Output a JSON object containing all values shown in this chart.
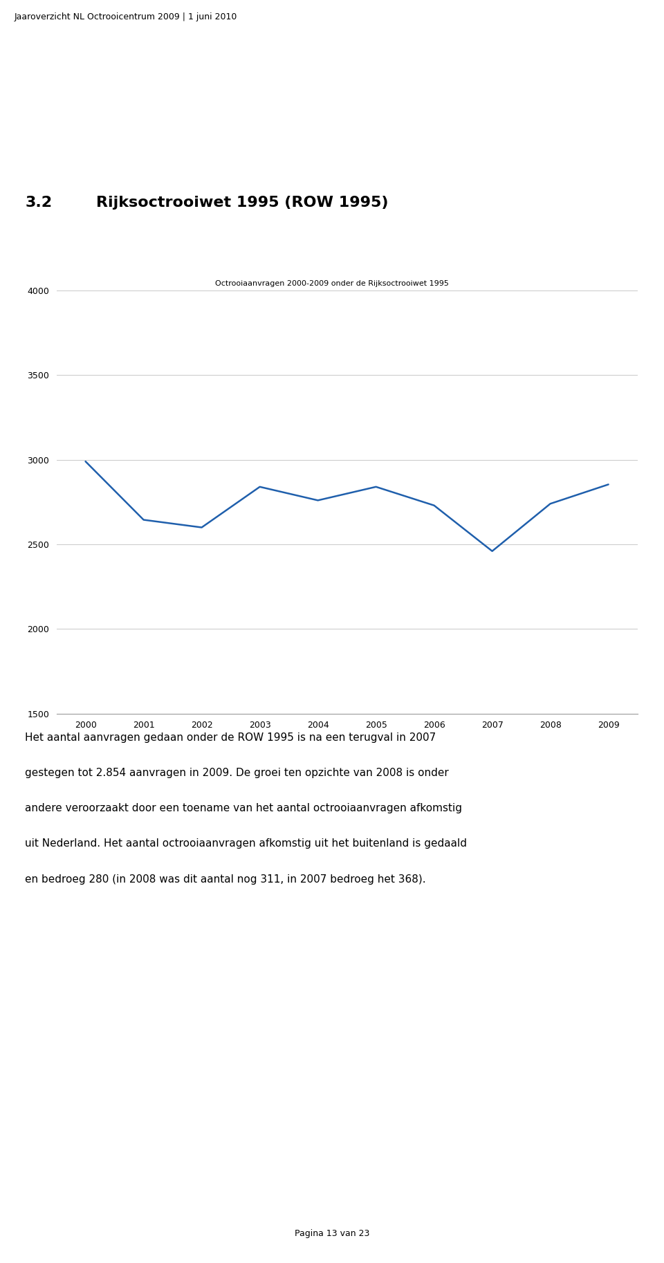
{
  "header_text": "Jaaroverzicht NL Octrooicentrum 2009 | 1 juni 2010",
  "section_number": "3.2",
  "section_title": "Rijksoctrooiwet 1995 (ROW 1995)",
  "chart_title": "Octrooiaanvragen 2000-2009 onder de Rijksoctrooiwet 1995",
  "years": [
    2000,
    2001,
    2002,
    2003,
    2004,
    2005,
    2006,
    2007,
    2008,
    2009
  ],
  "values": [
    2990,
    2645,
    2600,
    2840,
    2760,
    2840,
    2730,
    2460,
    2740,
    2854
  ],
  "line_color": "#1f5fac",
  "ylim": [
    1500,
    4000
  ],
  "yticks": [
    1500,
    2000,
    2500,
    3000,
    3500,
    4000
  ],
  "body_lines": [
    "Het aantal aanvragen gedaan onder de ROW 1995 is na een terugval in 2007",
    "gestegen tot 2.854 aanvragen in 2009. De groei ten opzichte van 2008 is onder",
    "andere veroorzaakt door een toename van het aantal octrooiaanvragen afkomstig",
    "uit Nederland. Het aantal octrooiaanvragen afkomstig uit het buitenland is gedaald",
    "en bedroeg 280 (in 2008 was dit aantal nog 311, in 2007 bedroeg het 368)."
  ],
  "footer_text": "Pagina 13 van 23",
  "background_color": "#ffffff",
  "grid_color": "#c8c8c8",
  "text_color": "#000000",
  "line_width": 1.8,
  "header_fontsize": 9,
  "section_num_fontsize": 16,
  "section_title_fontsize": 16,
  "chart_title_fontsize": 8,
  "axis_tick_fontsize": 9,
  "body_fontsize": 11,
  "footer_fontsize": 9
}
